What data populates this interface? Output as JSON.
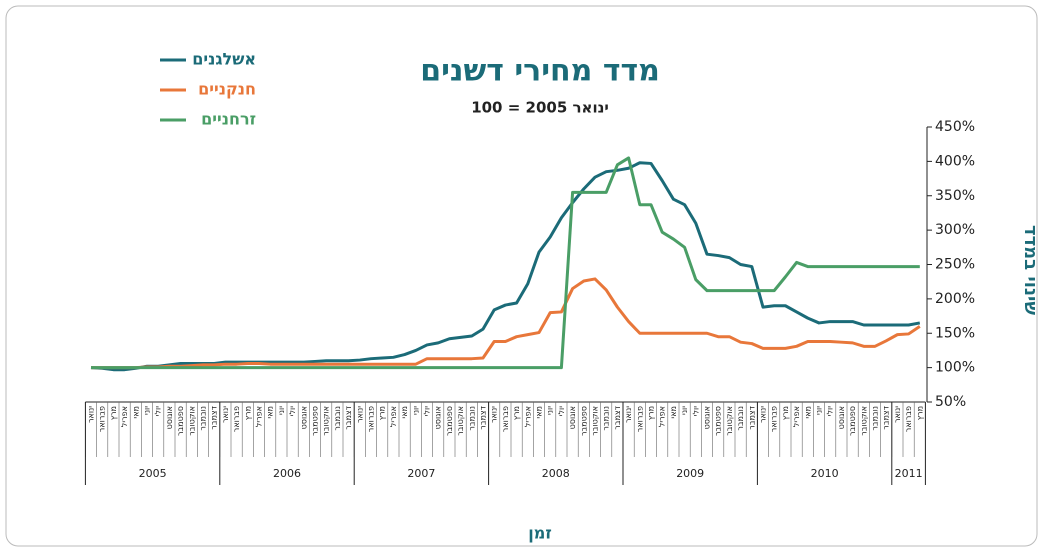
{
  "chart_data": {
    "type": "line",
    "title": "מדד מחירי דשנים",
    "subtitle": "ינואר 2005 = 100",
    "y_label": "שינוי במדד",
    "x_label": "זמן",
    "categories": [
      "ינואר",
      "פברואר",
      "מרץ",
      "אפריל",
      "מאי",
      "יוני",
      "יולי",
      "אוגוסט",
      "ספטמבר",
      "אוקטובר",
      "נובמבר",
      "דצמבר",
      "ינואר",
      "פברואר",
      "מרץ",
      "אפריל",
      "מאי",
      "יוני",
      "יולי",
      "אוגוסט",
      "ספטמבר",
      "אוקטובר",
      "נובמבר",
      "דצמבר",
      "ינואר",
      "פברואר",
      "מרץ",
      "אפריל",
      "מאי",
      "יוני",
      "יולי",
      "אוגוסט",
      "ספטמבר",
      "אוקטובר",
      "נובמבר",
      "דצמבר",
      "ינואר",
      "פברואר",
      "מרץ",
      "אפריל",
      "מאי",
      "יוני",
      "יולי",
      "אוגוסט",
      "ספטמבר",
      "אוקטובר",
      "נובמבר",
      "דצמבר",
      "ינואר",
      "פברואר",
      "מרץ",
      "אפריל",
      "מאי",
      "יוני",
      "יולי",
      "אוגוסט",
      "ספטמבר",
      "אוקטובר",
      "נובמבר",
      "דצמבר",
      "ינואר",
      "פברואר",
      "מרץ",
      "אפריל",
      "מאי",
      "יוני",
      "יולי",
      "אוגוסט",
      "ספטמבר",
      "אוקטובר",
      "נובמבר",
      "דצמבר",
      "ינואר",
      "פברואר",
      "מרץ"
    ],
    "year_groups": [
      {
        "label": "2005",
        "months": 12
      },
      {
        "label": "2006",
        "months": 12
      },
      {
        "label": "2007",
        "months": 12
      },
      {
        "label": "2008",
        "months": 12
      },
      {
        "label": "2009",
        "months": 12
      },
      {
        "label": "2010",
        "months": 12
      },
      {
        "label": "2011",
        "months": 3
      }
    ],
    "series": [
      {
        "name": "אשלגנים",
        "color": "#1b6b78",
        "values": [
          100,
          99,
          97,
          97,
          99,
          102,
          102,
          104,
          106,
          106,
          106,
          106,
          108,
          108,
          108,
          108,
          108,
          108,
          108,
          108,
          109,
          110,
          110,
          110,
          111,
          113,
          114,
          115,
          119,
          125,
          133,
          136,
          142,
          144,
          146,
          156,
          184,
          191,
          194,
          222,
          268,
          290,
          318,
          340,
          360,
          377,
          385,
          387,
          390,
          398,
          397,
          372,
          345,
          337,
          310,
          265,
          263,
          260,
          250,
          247,
          188,
          190,
          190,
          181,
          172,
          165,
          167,
          167,
          167,
          162,
          162,
          162,
          162,
          162,
          165
        ]
      },
      {
        "name": "חנקניים",
        "color": "#e8773a",
        "values": [
          100,
          100,
          100,
          100,
          100,
          101,
          101,
          102,
          102,
          103,
          104,
          104,
          105,
          105,
          106,
          106,
          105,
          105,
          105,
          105,
          105,
          105,
          105,
          105,
          105,
          105,
          105,
          105,
          105,
          105,
          113,
          113,
          113,
          113,
          113,
          114,
          138,
          138,
          145,
          148,
          151,
          180,
          181,
          215,
          226,
          229,
          213,
          188,
          167,
          150,
          150,
          150,
          150,
          150,
          150,
          150,
          145,
          145,
          137,
          135,
          128,
          128,
          128,
          131,
          138,
          138,
          138,
          137,
          136,
          131,
          131,
          139,
          148,
          149,
          160
        ]
      },
      {
        "name": "זרחניים",
        "color": "#4a9e66",
        "values": [
          100,
          100,
          100,
          100,
          100,
          100,
          100,
          100,
          100,
          100,
          100,
          100,
          100,
          100,
          100,
          100,
          100,
          100,
          100,
          100,
          100,
          100,
          100,
          100,
          100,
          100,
          100,
          100,
          100,
          100,
          100,
          100,
          100,
          100,
          100,
          100,
          100,
          100,
          100,
          100,
          100,
          100,
          100,
          355,
          355,
          355,
          355,
          395,
          405,
          337,
          337,
          297,
          287,
          275,
          228,
          212,
          212,
          212,
          212,
          212,
          212,
          212,
          232,
          253,
          247,
          247,
          247,
          247,
          247,
          247,
          247,
          247,
          247,
          247,
          247
        ]
      }
    ],
    "ylim": [
      50,
      450
    ],
    "yticks": [
      {
        "value": 50,
        "label": "50%"
      },
      {
        "value": 100,
        "label": "100%"
      },
      {
        "value": 150,
        "label": "150%"
      },
      {
        "value": 200,
        "label": "200%"
      },
      {
        "value": 250,
        "label": "250%"
      },
      {
        "value": 300,
        "label": "300%"
      },
      {
        "value": 350,
        "label": "350%"
      },
      {
        "value": 400,
        "label": "400%"
      },
      {
        "value": 450,
        "label": "450%"
      }
    ]
  }
}
